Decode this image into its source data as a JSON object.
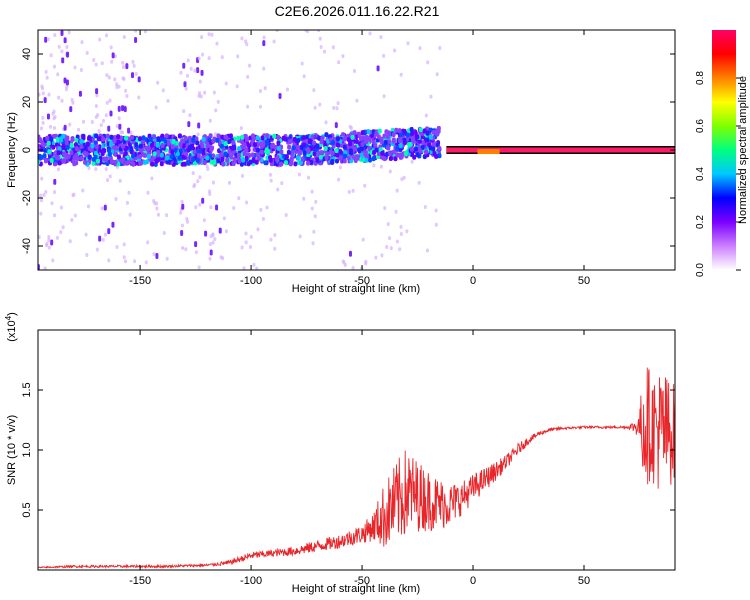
{
  "title": "C2E6.2026.011.16.22.R21",
  "colors": {
    "snr_line": "#e8262a",
    "spectrogram_core": "#ff1a66",
    "axis": "#000000"
  },
  "chart_data": [
    {
      "type": "heatmap",
      "name": "spectrogram",
      "xlabel": "Height of straight line (km)",
      "ylabel": "Frequency (Hz)",
      "xlim": [
        -196,
        91
      ],
      "ylim": [
        -50,
        50
      ],
      "xticks": [
        -150,
        -100,
        -50,
        0,
        50
      ],
      "yticks": [
        -40,
        -20,
        0,
        20,
        40
      ],
      "xtick_labels": [
        "-150",
        "-100",
        "-50",
        "0",
        "50"
      ],
      "ytick_labels": [
        "-40",
        "-20",
        "0",
        "20",
        "40"
      ],
      "colorbar": {
        "label": "Normalized spectral amplitude",
        "range": [
          0,
          1
        ],
        "ticks": [
          0.0,
          0.2,
          0.4,
          0.6,
          0.8
        ],
        "tick_labels": [
          "0.0",
          "0.2",
          "0.4",
          "0.6",
          "0.8"
        ],
        "colormap": [
          "#ffffff",
          "#cc80ff",
          "#7a00ff",
          "#0000ff",
          "#00c8ff",
          "#00ff80",
          "#80ff00",
          "#ffff00",
          "#ff8000",
          "#ff0000",
          "#ff0066"
        ]
      },
      "features": {
        "main_band_center_hz": 0,
        "noisy_band_range_km": [
          -196,
          -15
        ],
        "clean_carrier_range_km": [
          -12,
          91
        ],
        "wideband_noise_columns_km": [
          [
            -196,
            -180
          ],
          [
            -170,
            -150
          ],
          [
            -132,
            -115
          ]
        ]
      }
    },
    {
      "type": "line",
      "name": "snr",
      "xlabel": "Height of straight line (km)",
      "ylabel": "SNR (10 * v/v)",
      "y_multiplier": "(x10",
      "y_multiplier_exp": "4",
      "y_multiplier_close": ")",
      "xlim": [
        -196,
        91
      ],
      "ylim": [
        0,
        2.0
      ],
      "xticks": [
        -150,
        -100,
        -50,
        0,
        50
      ],
      "yticks": [
        0.5,
        1.0,
        1.5
      ],
      "xtick_labels": [
        "-150",
        "-100",
        "-50",
        "0",
        "50"
      ],
      "ytick_labels": [
        "0.5",
        "1.0",
        "1.5"
      ],
      "series": [
        {
          "name": "SNR",
          "x": [
            -196,
            -180,
            -160,
            -140,
            -120,
            -110,
            -100,
            -90,
            -80,
            -70,
            -60,
            -50,
            -45,
            -40,
            -35,
            -30,
            -25,
            -20,
            -15,
            -10,
            -5,
            0,
            5,
            10,
            15,
            20,
            25,
            30,
            35,
            40,
            50,
            60,
            70,
            75,
            77,
            80,
            85,
            91
          ],
          "y": [
            0.02,
            0.03,
            0.03,
            0.03,
            0.04,
            0.06,
            0.12,
            0.14,
            0.16,
            0.2,
            0.24,
            0.3,
            0.36,
            0.45,
            0.55,
            0.65,
            0.62,
            0.58,
            0.55,
            0.55,
            0.6,
            0.68,
            0.75,
            0.82,
            0.9,
            1.0,
            1.08,
            1.14,
            1.17,
            1.18,
            1.19,
            1.19,
            1.19,
            1.2,
            1.25,
            1.2,
            1.15,
            1.15
          ],
          "spread": [
            0.005,
            0.01,
            0.01,
            0.01,
            0.01,
            0.02,
            0.03,
            0.03,
            0.04,
            0.05,
            0.06,
            0.08,
            0.12,
            0.28,
            0.34,
            0.38,
            0.3,
            0.26,
            0.22,
            0.18,
            0.14,
            0.12,
            0.1,
            0.08,
            0.06,
            0.05,
            0.03,
            0.02,
            0.015,
            0.01,
            0.01,
            0.01,
            0.01,
            0.1,
            0.6,
            0.45,
            0.55,
            0.4
          ]
        }
      ]
    }
  ]
}
